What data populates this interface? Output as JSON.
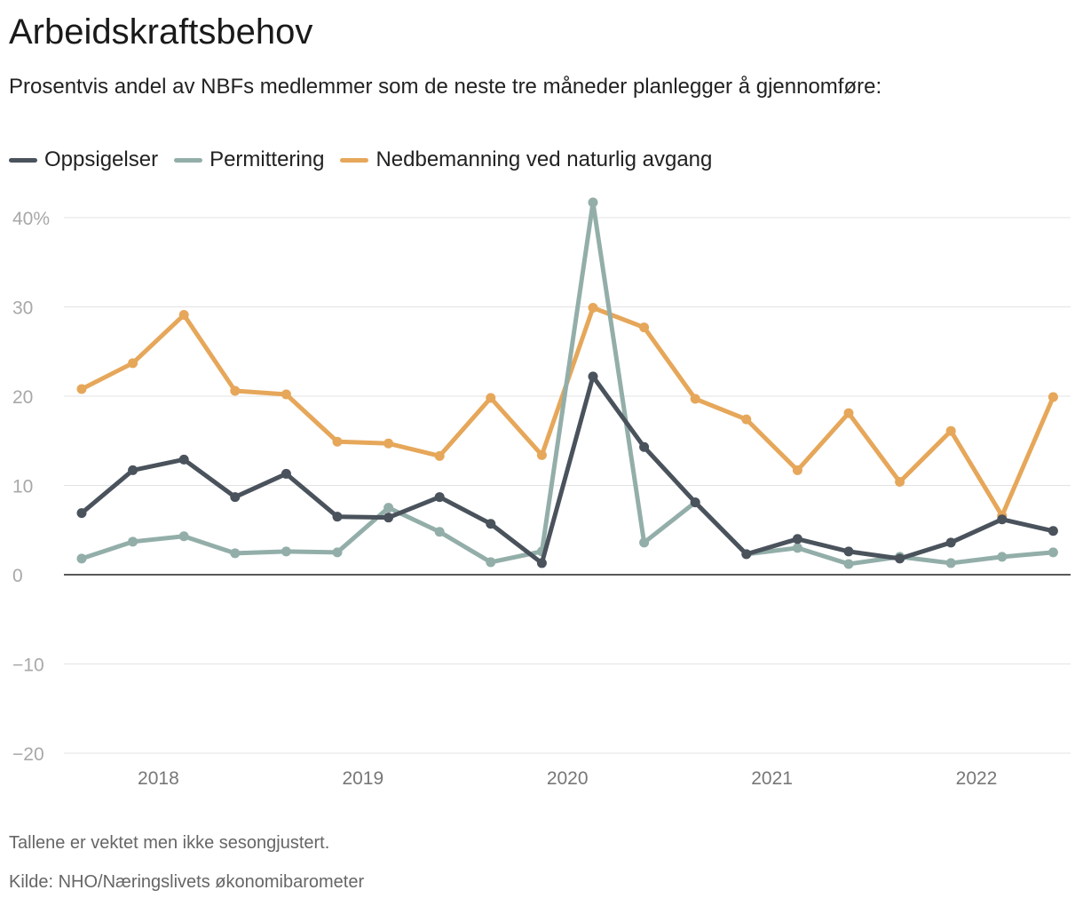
{
  "title": "Arbeidskraftsbehov",
  "subtitle": "Prosentvis andel av NBFs medlemmer som de neste tre måneder planlegger å gjennomføre:",
  "note": "Tallene er vektet men ikke sesongjustert.",
  "source": "Kilde: NHO/Næringslivets økonomibarometer",
  "chart_data": {
    "type": "line",
    "x": [
      "2017Q4",
      "2018Q1",
      "2018Q2",
      "2018Q3",
      "2018Q4",
      "2019Q1",
      "2019Q2",
      "2019Q3",
      "2019Q4",
      "2020Q1",
      "2020Q2",
      "2020Q3",
      "2020Q4",
      "2021Q1",
      "2021Q2",
      "2021Q3",
      "2021Q4",
      "2022Q1",
      "2022Q2",
      "2022Q3"
    ],
    "x_tick_labels": [
      "2018",
      "2019",
      "2020",
      "2021",
      "2022"
    ],
    "y_tick_labels": [
      "40%",
      "30",
      "20",
      "10",
      "0",
      "−10",
      "−20"
    ],
    "y_ticks": [
      40,
      30,
      20,
      10,
      0,
      -10,
      -20
    ],
    "ylim": [
      -20,
      40
    ],
    "grid": true,
    "legend_position": "top-left",
    "series": [
      {
        "name": "Oppsigelser",
        "color": "#4a525c",
        "values": [
          6.9,
          11.7,
          12.9,
          8.7,
          11.3,
          6.5,
          6.4,
          8.7,
          5.7,
          1.3,
          22.2,
          14.3,
          8.1,
          2.3,
          4.0,
          2.6,
          1.8,
          3.6,
          6.2,
          4.9
        ]
      },
      {
        "name": "Permittering",
        "color": "#93aea9",
        "values": [
          1.8,
          3.7,
          4.3,
          2.4,
          2.6,
          2.5,
          7.5,
          4.8,
          1.4,
          2.6,
          41.7,
          3.6,
          8.1,
          2.3,
          3.0,
          1.2,
          2.0,
          1.3,
          2.0,
          2.5
        ]
      },
      {
        "name": "Nedbemanning ved naturlig avgang",
        "color": "#e6a75a",
        "values": [
          20.8,
          23.7,
          29.1,
          20.6,
          20.2,
          14.9,
          14.7,
          13.3,
          19.8,
          13.4,
          29.9,
          27.7,
          19.7,
          17.4,
          11.7,
          18.1,
          10.4,
          16.1,
          6.6,
          19.9
        ]
      }
    ]
  }
}
